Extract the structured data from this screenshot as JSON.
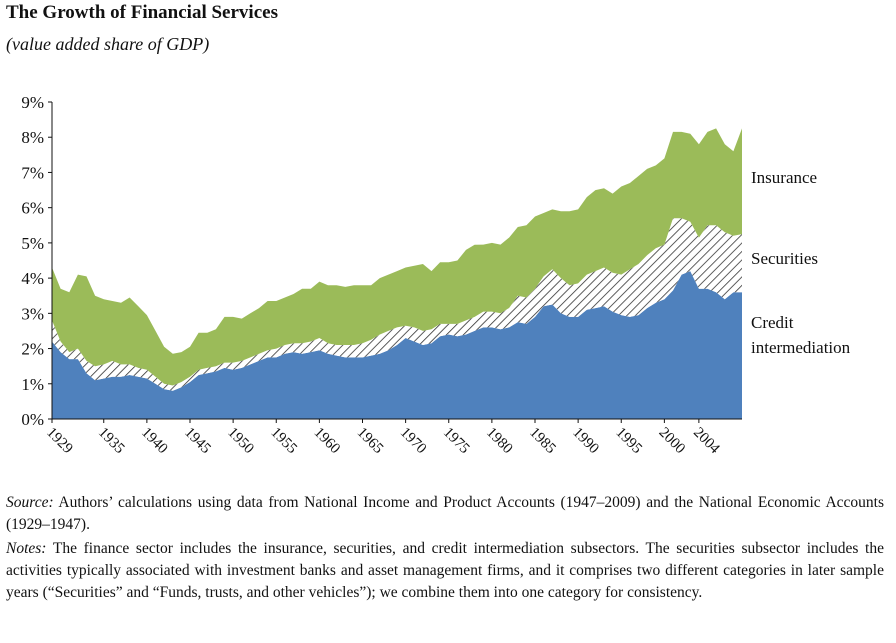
{
  "chart_data": {
    "type": "area",
    "stacked": true,
    "title": "The Growth of Financial Services",
    "subtitle": "(value added share of GDP)",
    "xlabel": "",
    "ylabel": "",
    "ylim": [
      0,
      9
    ],
    "yticks": [
      "0%",
      "1%",
      "2%",
      "3%",
      "4%",
      "5%",
      "6%",
      "7%",
      "8%",
      "9%"
    ],
    "xlim": [
      1929,
      2009
    ],
    "xticks": [
      "1929",
      "1935",
      "1940",
      "1945",
      "1950",
      "1955",
      "1960",
      "1965",
      "1970",
      "1975",
      "1980",
      "1985",
      "1990",
      "1995",
      "2000",
      "2004"
    ],
    "xtick_values": [
      1929,
      1935,
      1940,
      1945,
      1950,
      1955,
      1960,
      1965,
      1970,
      1975,
      1980,
      1985,
      1990,
      1995,
      2000,
      2004
    ],
    "x": [
      1929,
      1930,
      1931,
      1932,
      1933,
      1934,
      1935,
      1936,
      1937,
      1938,
      1939,
      1940,
      1941,
      1942,
      1943,
      1944,
      1945,
      1946,
      1947,
      1948,
      1949,
      1950,
      1951,
      1952,
      1953,
      1954,
      1955,
      1956,
      1957,
      1958,
      1959,
      1960,
      1961,
      1962,
      1963,
      1964,
      1965,
      1966,
      1967,
      1968,
      1969,
      1970,
      1971,
      1972,
      1973,
      1974,
      1975,
      1976,
      1977,
      1978,
      1979,
      1980,
      1981,
      1982,
      1983,
      1984,
      1985,
      1986,
      1987,
      1988,
      1989,
      1990,
      1991,
      1992,
      1993,
      1994,
      1995,
      1996,
      1997,
      1998,
      1999,
      2000,
      2001,
      2002,
      2003,
      2004,
      2005,
      2006,
      2007,
      2008,
      2009
    ],
    "series": [
      {
        "name": "Credit intermediation",
        "label": "Credit intermediation",
        "color": "#4f81bd",
        "values": [
          2.2,
          1.9,
          1.7,
          1.7,
          1.3,
          1.1,
          1.15,
          1.2,
          1.2,
          1.25,
          1.2,
          1.15,
          1.0,
          0.85,
          0.8,
          0.9,
          1.05,
          1.25,
          1.3,
          1.35,
          1.45,
          1.4,
          1.45,
          1.55,
          1.65,
          1.75,
          1.75,
          1.85,
          1.9,
          1.85,
          1.9,
          1.95,
          1.85,
          1.8,
          1.75,
          1.75,
          1.75,
          1.8,
          1.85,
          1.95,
          2.1,
          2.3,
          2.2,
          2.1,
          2.15,
          2.35,
          2.4,
          2.35,
          2.4,
          2.5,
          2.6,
          2.6,
          2.55,
          2.6,
          2.75,
          2.7,
          2.9,
          3.2,
          3.25,
          3.0,
          2.9,
          2.9,
          3.1,
          3.15,
          3.2,
          3.05,
          2.95,
          2.9,
          2.95,
          3.15,
          3.3,
          3.4,
          3.65,
          4.1,
          4.2,
          3.7,
          3.7,
          3.6,
          3.4,
          3.6,
          3.6
        ]
      },
      {
        "name": "Securities",
        "label": "Securities",
        "color": "#ffffff",
        "pattern": "diagonal-hatch",
        "values": [
          0.6,
          0.3,
          0.2,
          0.3,
          0.35,
          0.4,
          0.4,
          0.45,
          0.35,
          0.3,
          0.25,
          0.25,
          0.2,
          0.15,
          0.15,
          0.15,
          0.15,
          0.15,
          0.15,
          0.15,
          0.15,
          0.2,
          0.2,
          0.2,
          0.2,
          0.2,
          0.25,
          0.25,
          0.25,
          0.3,
          0.3,
          0.35,
          0.3,
          0.3,
          0.35,
          0.35,
          0.4,
          0.45,
          0.55,
          0.55,
          0.5,
          0.35,
          0.4,
          0.4,
          0.4,
          0.35,
          0.3,
          0.35,
          0.4,
          0.4,
          0.45,
          0.45,
          0.45,
          0.55,
          0.75,
          0.75,
          0.8,
          0.85,
          1.0,
          1.0,
          0.9,
          0.95,
          1.0,
          1.05,
          1.1,
          1.1,
          1.15,
          1.35,
          1.45,
          1.5,
          1.55,
          1.55,
          2.05,
          1.6,
          1.4,
          1.45,
          1.8,
          1.9,
          1.9,
          1.6,
          1.65
        ]
      },
      {
        "name": "Insurance",
        "label": "Insurance",
        "color": "#9bbb59",
        "values": [
          1.5,
          1.5,
          1.7,
          2.1,
          2.4,
          2.0,
          1.85,
          1.7,
          1.75,
          1.9,
          1.75,
          1.55,
          1.3,
          1.05,
          0.9,
          0.85,
          0.85,
          1.05,
          1.0,
          1.05,
          1.3,
          1.3,
          1.2,
          1.25,
          1.3,
          1.4,
          1.35,
          1.35,
          1.4,
          1.55,
          1.5,
          1.6,
          1.65,
          1.7,
          1.65,
          1.7,
          1.65,
          1.55,
          1.6,
          1.6,
          1.6,
          1.65,
          1.75,
          1.9,
          1.65,
          1.75,
          1.75,
          1.8,
          2.0,
          2.05,
          1.9,
          1.95,
          1.95,
          2.0,
          1.95,
          2.05,
          2.05,
          1.8,
          1.7,
          1.9,
          2.1,
          2.1,
          2.2,
          2.3,
          2.25,
          2.25,
          2.5,
          2.45,
          2.5,
          2.45,
          2.35,
          2.45,
          2.45,
          2.45,
          2.5,
          2.65,
          2.65,
          2.75,
          2.5,
          2.4,
          3.0
        ]
      }
    ],
    "annotations": [
      "Insurance",
      "Securities",
      "Credit",
      "intermediation"
    ]
  },
  "source": {
    "label": "Source:",
    "text": " Authors’ calculations using data from National Income and Product Accounts (1947–2009) and the National Economic Accounts (1929–1947)."
  },
  "notes": {
    "label": "Notes:",
    "text": " The finance sector includes the insurance, securities, and credit intermediation subsectors. The securities subsector includes the activities typically associated with investment banks and asset management firms, and it comprises two different categories in later sample years (“Securities” and “Funds, trusts, and other vehicles”); we combine them into one category for consistency."
  }
}
